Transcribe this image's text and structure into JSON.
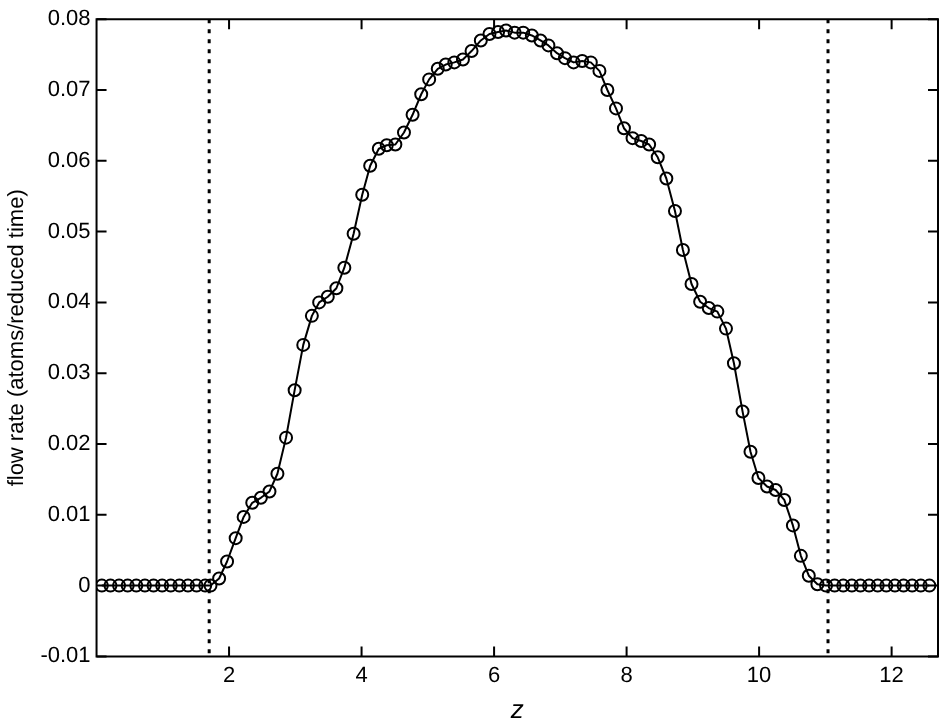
{
  "chart_data": {
    "type": "line",
    "xlabel": "z",
    "ylabel": "flow rate (atoms/reduced time)",
    "xlim": [
      0,
      12.7
    ],
    "xticks": [
      2,
      4,
      6,
      8,
      10,
      12
    ],
    "ylim": [
      -0.01,
      0.08
    ],
    "yticks": [
      -0.01,
      0,
      0.01,
      0.02,
      0.03,
      0.04,
      0.05,
      0.06,
      0.07,
      0.08
    ],
    "grid": false,
    "legend": false,
    "marker": "circle",
    "line_style": "solid",
    "ref_lines": [
      {
        "axis": "x",
        "value": 1.7,
        "line_style": "dotted",
        "color": "#000000"
      },
      {
        "axis": "x",
        "value": 11.04,
        "line_style": "dotted",
        "color": "#000000"
      }
    ],
    "series": [
      {
        "color": "#000000",
        "x": [
          0.08,
          0.21,
          0.34,
          0.47,
          0.6,
          0.73,
          0.86,
          0.99,
          1.12,
          1.25,
          1.38,
          1.51,
          1.64,
          1.72,
          1.85,
          1.97,
          2.1,
          2.22,
          2.35,
          2.48,
          2.61,
          2.73,
          2.86,
          2.99,
          3.12,
          3.25,
          3.36,
          3.49,
          3.62,
          3.74,
          3.88,
          4.01,
          4.13,
          4.26,
          4.38,
          4.51,
          4.64,
          4.77,
          4.9,
          5.02,
          5.15,
          5.27,
          5.4,
          5.53,
          5.66,
          5.8,
          5.93,
          6.06,
          6.18,
          6.31,
          6.44,
          6.57,
          6.7,
          6.82,
          6.95,
          7.07,
          7.2,
          7.33,
          7.46,
          7.59,
          7.71,
          7.84,
          7.96,
          8.09,
          8.22,
          8.34,
          8.47,
          8.6,
          8.73,
          8.85,
          8.98,
          9.11,
          9.24,
          9.37,
          9.5,
          9.62,
          9.75,
          9.87,
          9.99,
          10.12,
          10.25,
          10.38,
          10.51,
          10.63,
          10.75,
          10.88,
          11.01,
          11.14,
          11.27,
          11.4,
          11.53,
          11.66,
          11.79,
          11.92,
          12.05,
          12.18,
          12.31,
          12.44,
          12.57
        ],
        "values": [
          0,
          0,
          0,
          0,
          0,
          0,
          0,
          0,
          0,
          0,
          0,
          0,
          0,
          0,
          0.001,
          0.0034,
          0.0067,
          0.0097,
          0.0117,
          0.0124,
          0.0133,
          0.0158,
          0.0209,
          0.0276,
          0.034,
          0.0381,
          0.04,
          0.0408,
          0.042,
          0.0449,
          0.0497,
          0.0552,
          0.0593,
          0.0617,
          0.0622,
          0.0623,
          0.064,
          0.0665,
          0.0694,
          0.0715,
          0.073,
          0.0736,
          0.0739,
          0.0743,
          0.0755,
          0.077,
          0.0779,
          0.0782,
          0.0784,
          0.0781,
          0.0781,
          0.0777,
          0.077,
          0.0763,
          0.0752,
          0.0745,
          0.0739,
          0.0741,
          0.0739,
          0.0727,
          0.07,
          0.0674,
          0.0646,
          0.0632,
          0.0628,
          0.0623,
          0.0605,
          0.0575,
          0.0529,
          0.0474,
          0.0426,
          0.0401,
          0.0392,
          0.0387,
          0.0363,
          0.0314,
          0.0246,
          0.0189,
          0.0152,
          0.014,
          0.0135,
          0.0121,
          0.0085,
          0.0042,
          0.0014,
          0.0002,
          0,
          0,
          0,
          0,
          0,
          0,
          0,
          0,
          0,
          0,
          0,
          0,
          0
        ]
      }
    ]
  }
}
